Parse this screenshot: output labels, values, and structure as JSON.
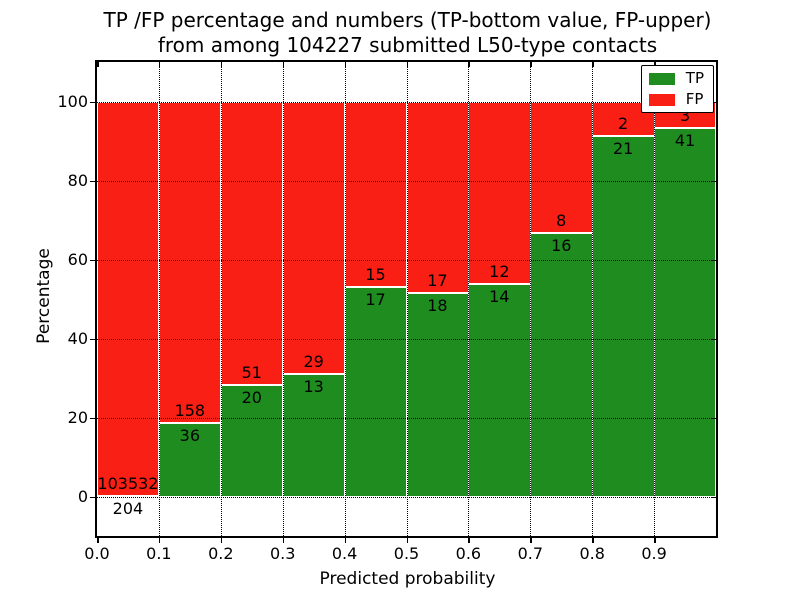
{
  "title": {
    "line1": "TP /FP percentage and numbers (TP-bottom value, FP-upper)",
    "line2": "from among 104227 submitted L50-type contacts"
  },
  "axes": {
    "xlabel": "Predicted probability",
    "ylabel": "Percentage",
    "xtick_labels": [
      "0.0",
      "0.1",
      "0.2",
      "0.3",
      "0.4",
      "0.5",
      "0.6",
      "0.7",
      "0.8",
      "0.9"
    ],
    "ytick_labels": [
      "0",
      "20",
      "40",
      "60",
      "80",
      "100"
    ]
  },
  "legend": {
    "items": [
      {
        "label": "TP",
        "color": "#1f8c1f"
      },
      {
        "label": "FP",
        "color": "#fa1f15"
      }
    ]
  },
  "chart_data": {
    "type": "bar",
    "stacked": true,
    "normalized": "each bar sums to 100%",
    "title": "TP /FP percentage and numbers (TP-bottom value, FP-upper) from among 104227 submitted L50-type contacts",
    "xlabel": "Predicted probability",
    "ylabel": "Percentage",
    "total_contacts": 104227,
    "bin_edges": [
      0.0,
      0.1,
      0.2,
      0.3,
      0.4,
      0.5,
      0.6,
      0.7,
      0.8,
      0.9,
      1.0
    ],
    "categories": [
      "0.0-0.1",
      "0.1-0.2",
      "0.2-0.3",
      "0.3-0.4",
      "0.4-0.5",
      "0.5-0.6",
      "0.6-0.7",
      "0.7-0.8",
      "0.8-0.9",
      "0.9-1.0"
    ],
    "series": [
      {
        "name": "TP",
        "color": "#1f8c1f",
        "counts": [
          204,
          36,
          20,
          13,
          17,
          18,
          14,
          16,
          21,
          41
        ],
        "percent": [
          0.2,
          18.56,
          28.17,
          30.95,
          53.13,
          51.43,
          53.85,
          66.67,
          91.3,
          93.18
        ]
      },
      {
        "name": "FP",
        "color": "#fa1f15",
        "counts": [
          103532,
          158,
          51,
          29,
          15,
          17,
          12,
          8,
          2,
          3
        ],
        "percent": [
          99.8,
          81.44,
          71.83,
          69.05,
          46.87,
          48.57,
          46.15,
          33.33,
          8.7,
          6.82
        ]
      }
    ],
    "annotations": "FP count printed above the TP/FP boundary, TP count printed below it",
    "xticks": [
      0.0,
      0.1,
      0.2,
      0.3,
      0.4,
      0.5,
      0.6,
      0.7,
      0.8,
      0.9
    ],
    "yticks": [
      0,
      20,
      40,
      60,
      80,
      100
    ],
    "xlim": [
      0.0,
      1.0
    ],
    "ylim": [
      -10,
      110
    ],
    "grid": "dotted black, both axes",
    "bar_edge_color": "#ffffff",
    "legend_position": "upper right"
  }
}
